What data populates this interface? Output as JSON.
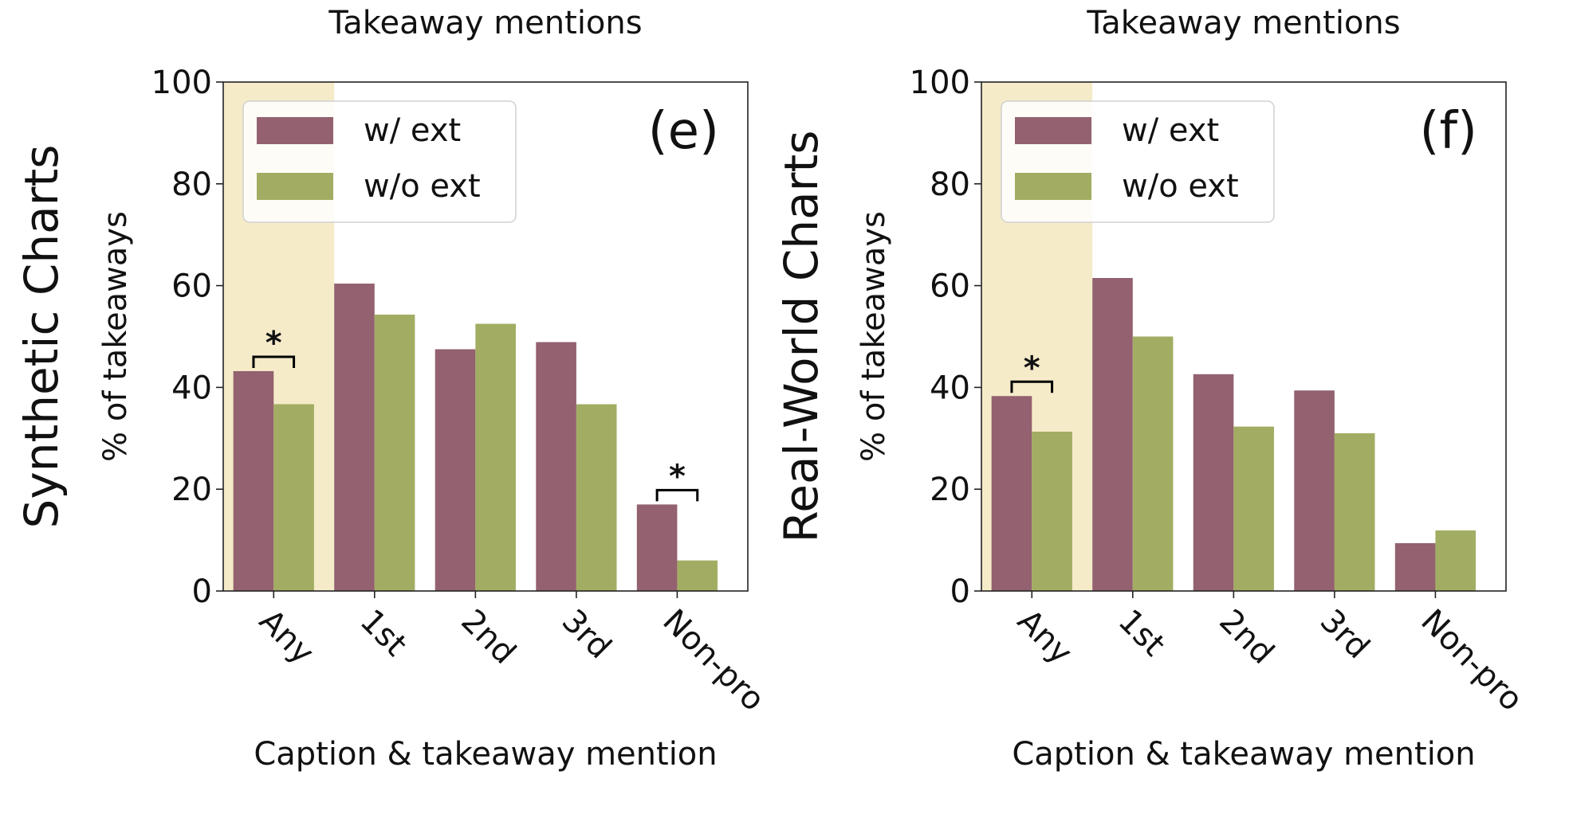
{
  "colors": {
    "with_ext": "#93616f",
    "without_ext": "#a2ad63",
    "highlight": "#f5ebc9"
  },
  "chart_data": [
    {
      "type": "bar",
      "panel_label": "(e)",
      "row_label": "Synthetic Charts",
      "title": "Takeaway mentions",
      "xlabel": "Caption & takeaway mention",
      "ylabel": "% of takeaways",
      "ylim": [
        0,
        100
      ],
      "yticks": [
        0,
        20,
        40,
        60,
        80,
        100
      ],
      "categories": [
        "Any",
        "1st",
        "2nd",
        "3rd",
        "Non-pro"
      ],
      "series": [
        {
          "name": "w/ ext",
          "values": [
            43.2,
            60.4,
            47.5,
            48.9,
            17.0
          ]
        },
        {
          "name": "w/o ext",
          "values": [
            36.7,
            54.3,
            52.5,
            36.7,
            6.0
          ]
        }
      ],
      "highlighted_category": "Any",
      "significance": [
        {
          "category": "Any",
          "label": "*"
        },
        {
          "category": "Non-pro",
          "label": "*"
        }
      ],
      "legend": "top-left",
      "grid": false
    },
    {
      "type": "bar",
      "panel_label": "(f)",
      "row_label": "Real-World Charts",
      "title": "Takeaway mentions",
      "xlabel": "Caption & takeaway mention",
      "ylabel": "% of takeaways",
      "ylim": [
        0,
        100
      ],
      "yticks": [
        0,
        20,
        40,
        60,
        80,
        100
      ],
      "categories": [
        "Any",
        "1st",
        "2nd",
        "3rd",
        "Non-pro"
      ],
      "series": [
        {
          "name": "w/ ext",
          "values": [
            38.3,
            61.5,
            42.6,
            39.4,
            9.4
          ]
        },
        {
          "name": "w/o ext",
          "values": [
            31.3,
            50.0,
            32.3,
            31.0,
            11.9
          ]
        }
      ],
      "highlighted_category": "Any",
      "significance": [
        {
          "category": "Any",
          "label": "*"
        }
      ],
      "legend": "top-left",
      "grid": false
    }
  ]
}
